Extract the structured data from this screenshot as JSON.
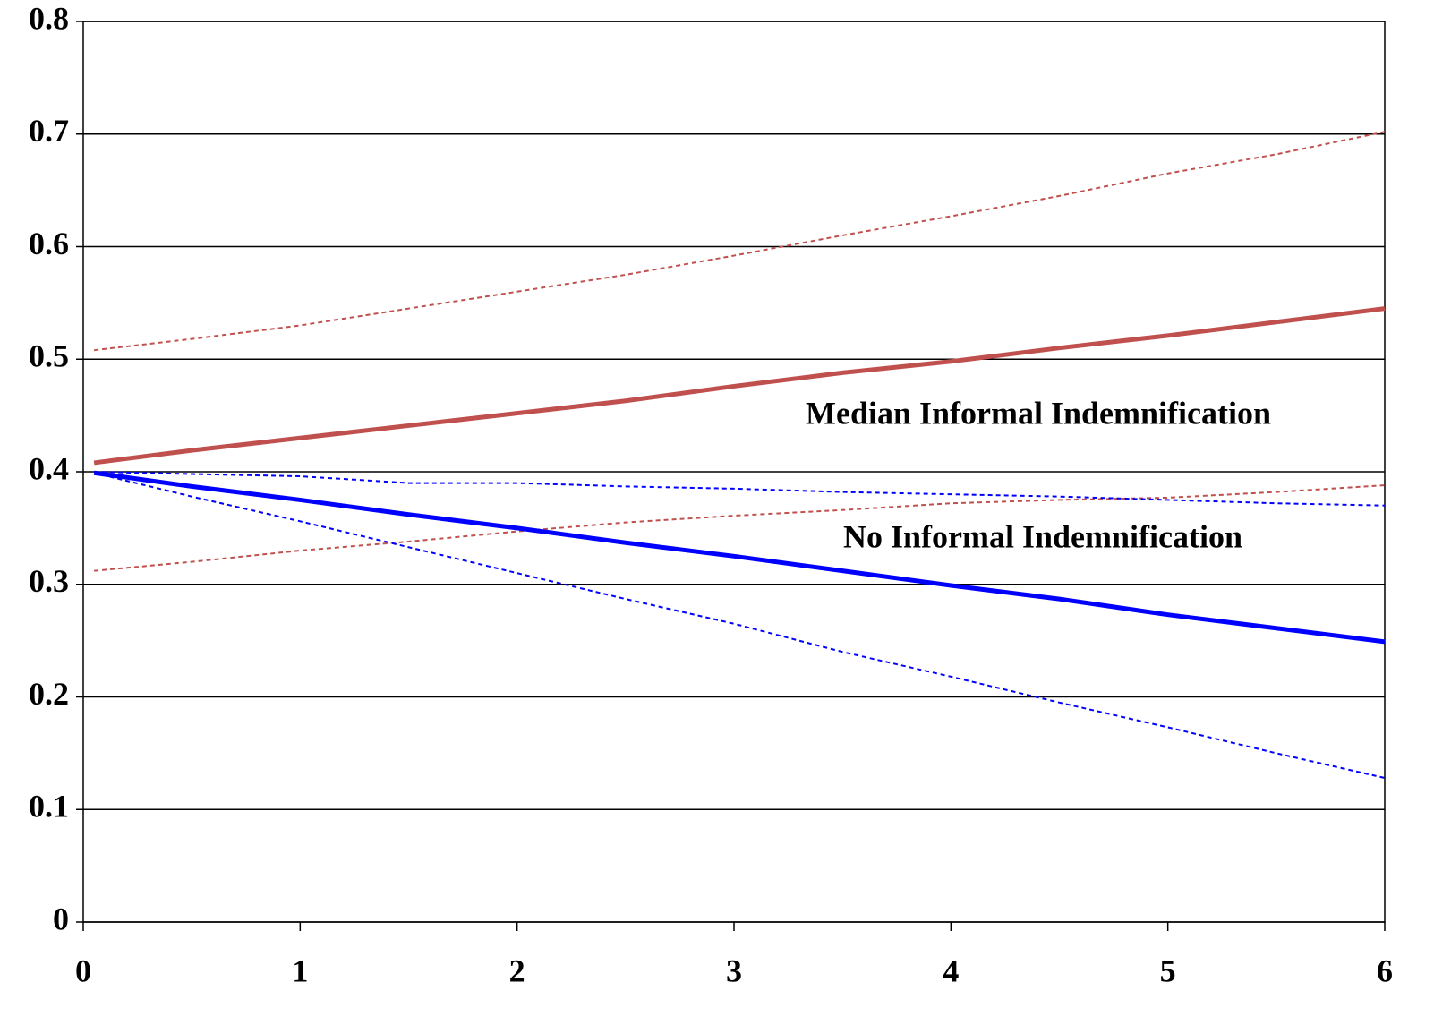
{
  "chart_data": {
    "type": "line",
    "annotations": [
      "Median Informal Indemnification",
      "No Informal Indemnification"
    ],
    "x": [
      0.05,
      0.5,
      1,
      1.5,
      2,
      2.5,
      3,
      3.5,
      4,
      4.5,
      5,
      5.5,
      6
    ],
    "series": [
      {
        "color": "#c0504d",
        "style": "solid",
        "values": [
          0.408,
          0.419,
          0.43,
          0.441,
          0.452,
          0.463,
          0.476,
          0.488,
          0.498,
          0.51,
          0.521,
          0.533,
          0.545
        ]
      },
      {
        "color": "#c0504d",
        "style": "dotted",
        "values": [
          0.508,
          0.518,
          0.53,
          0.545,
          0.56,
          0.575,
          0.592,
          0.61,
          0.627,
          0.645,
          0.665,
          0.682,
          0.702
        ]
      },
      {
        "color": "#c0504d",
        "style": "dotted",
        "values": [
          0.312,
          0.32,
          0.33,
          0.338,
          0.347,
          0.355,
          0.361,
          0.366,
          0.372,
          0.375,
          0.377,
          0.382,
          0.388
        ]
      },
      {
        "color": "#0000ff",
        "style": "solid",
        "values": [
          0.399,
          0.387,
          0.375,
          0.362,
          0.35,
          0.337,
          0.325,
          0.312,
          0.299,
          0.287,
          0.273,
          0.261,
          0.249
        ]
      },
      {
        "color": "#0000ff",
        "style": "dotted",
        "values": [
          0.4,
          0.398,
          0.396,
          0.39,
          0.39,
          0.387,
          0.385,
          0.382,
          0.38,
          0.378,
          0.375,
          0.372,
          0.37
        ]
      },
      {
        "color": "#0000ff",
        "style": "dotted",
        "values": [
          0.399,
          0.378,
          0.356,
          0.333,
          0.31,
          0.287,
          0.265,
          0.24,
          0.218,
          0.195,
          0.173,
          0.15,
          0.128
        ]
      }
    ],
    "xlim": [
      0,
      6
    ],
    "xticks": [
      0,
      1,
      2,
      3,
      4,
      5,
      6
    ],
    "ylim": [
      0,
      0.8
    ],
    "yticks": [
      0,
      0.1,
      0.2,
      0.3,
      0.4,
      0.5,
      0.6,
      0.7,
      0.8
    ],
    "grid": true
  }
}
